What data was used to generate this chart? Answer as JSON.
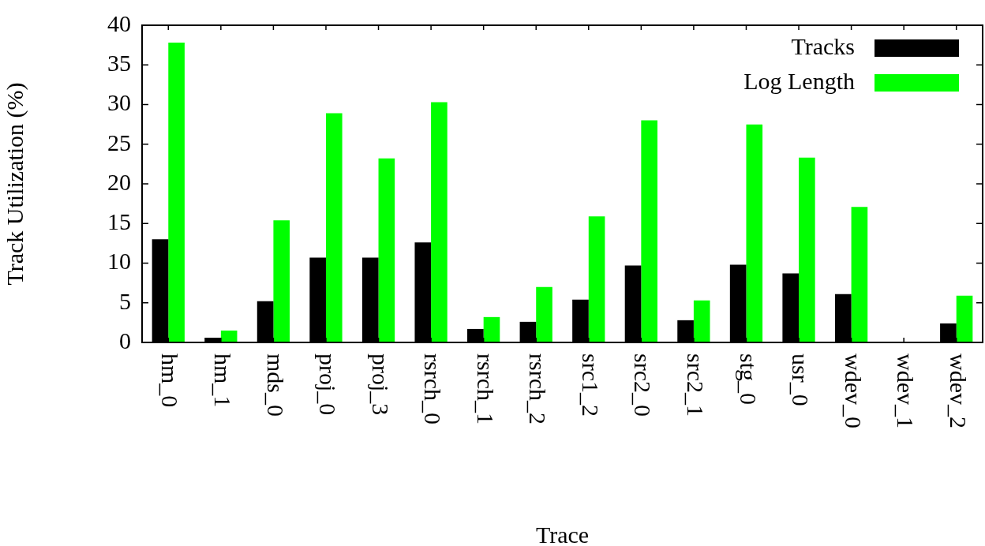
{
  "chart_data": {
    "type": "bar",
    "xlabel": "Trace",
    "ylabel": "Track Utilization (%)",
    "categories": [
      "hm_0",
      "hm_1",
      "mds_0",
      "proj_0",
      "proj_3",
      "rsrch_0",
      "rsrch_1",
      "rsrch_2",
      "src1_2",
      "src2_0",
      "src2_1",
      "stg_0",
      "usr_0",
      "wdev_0",
      "wdev_1",
      "wdev_2"
    ],
    "series": [
      {
        "name": "Tracks",
        "color": "#000000",
        "values": [
          13.0,
          0.6,
          5.2,
          10.7,
          10.7,
          12.6,
          1.7,
          2.6,
          5.4,
          9.7,
          2.8,
          9.8,
          8.7,
          6.1,
          0,
          2.4
        ]
      },
      {
        "name": "Log Length",
        "color": "#00ff00",
        "values": [
          37.8,
          1.5,
          15.4,
          28.9,
          23.2,
          30.3,
          3.2,
          7.0,
          15.9,
          28.0,
          5.3,
          27.5,
          23.3,
          17.1,
          0,
          5.9
        ]
      }
    ],
    "ylim": [
      0,
      40
    ],
    "yticks": [
      0,
      5,
      10,
      15,
      20,
      25,
      30,
      35,
      40
    ],
    "grid": false,
    "legend": "top right"
  }
}
